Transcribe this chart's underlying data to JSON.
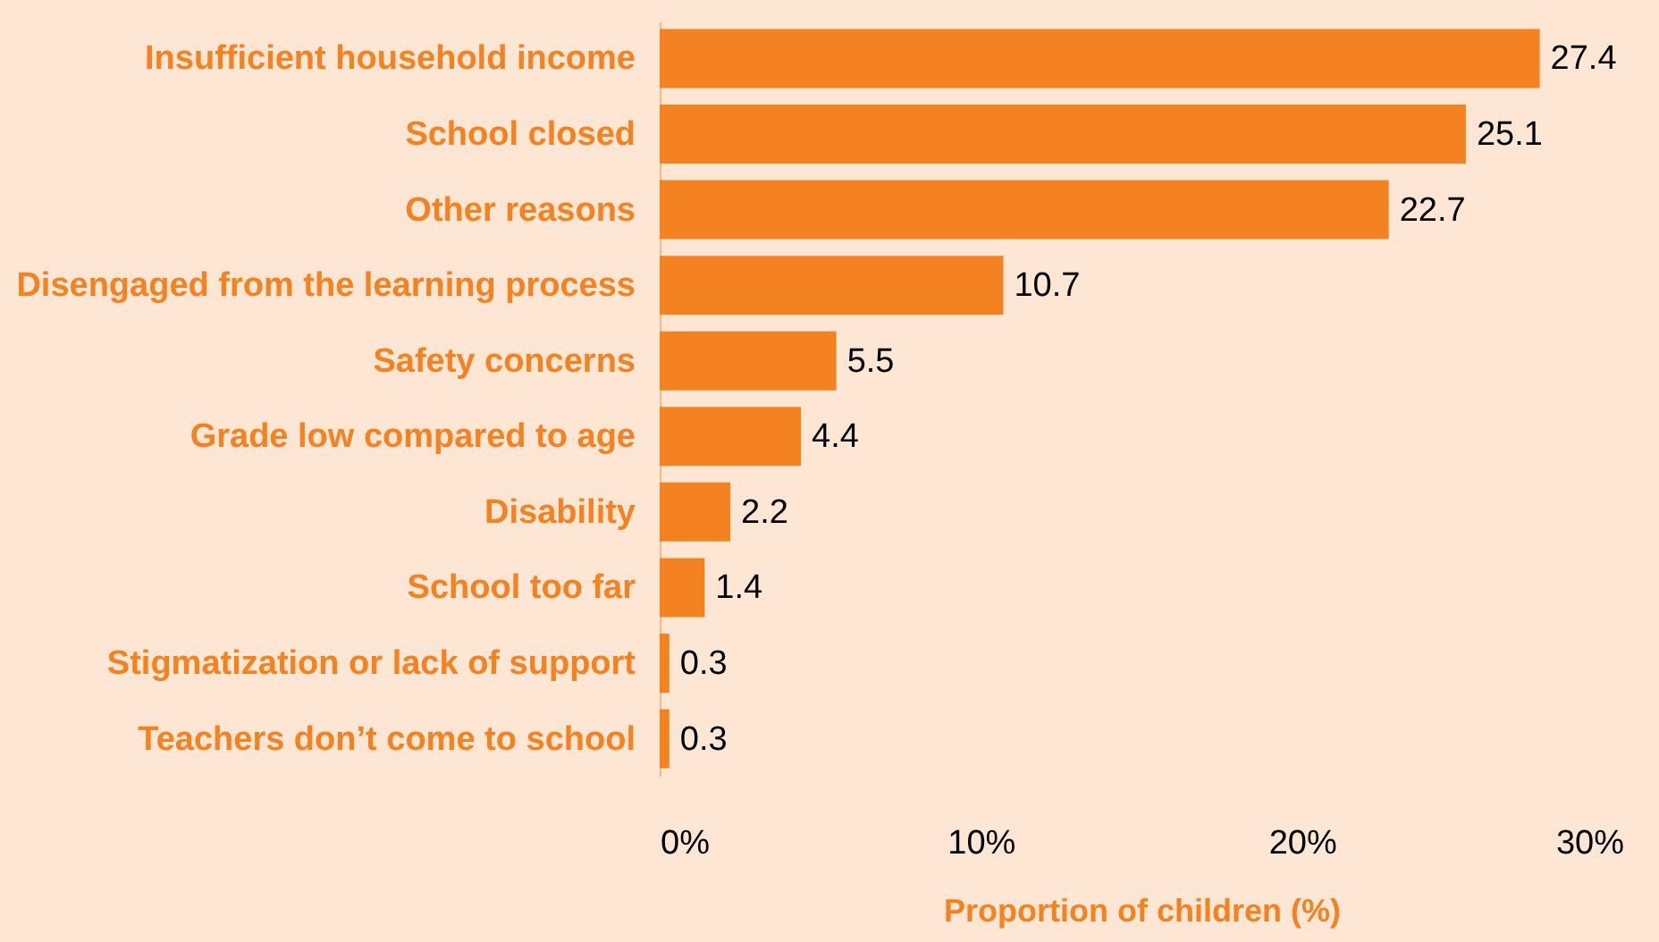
{
  "chart_data": {
    "type": "bar",
    "orientation": "horizontal",
    "xlabel": "Proportion of children (%)",
    "categories": [
      "Insufficient household income",
      "School closed",
      "Other reasons",
      "Disengaged from the learning process",
      "Safety concerns",
      "Grade low compared to age",
      "Disability",
      "School too far",
      "Stigmatization or lack of support",
      "Teachers don’t come to school"
    ],
    "values": [
      27.4,
      25.1,
      22.7,
      10.7,
      5.5,
      4.4,
      2.2,
      1.4,
      0.3,
      0.3
    ],
    "color": "#f58220",
    "xlim": [
      0,
      30
    ],
    "xticks": [
      {
        "value": 0,
        "label": "0%"
      },
      {
        "value": 10,
        "label": "10%"
      },
      {
        "value": 20,
        "label": "20%"
      },
      {
        "value": 30,
        "label": "30%"
      }
    ],
    "data_labels": true,
    "grid": false
  }
}
